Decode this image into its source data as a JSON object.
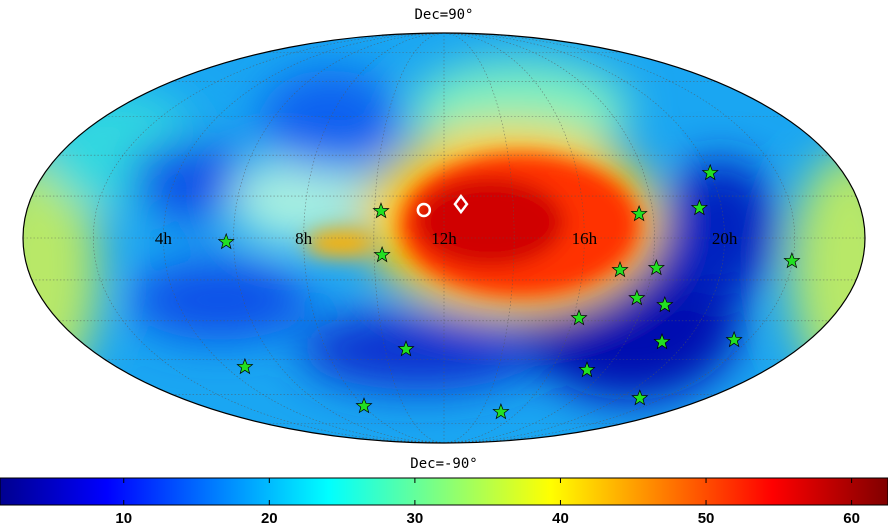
{
  "chart_data": {
    "type": "mollweide",
    "north_label": "Dec=90°",
    "south_label": "Dec=-90°",
    "ra_ticks": [
      {
        "value": 4,
        "label": "4h"
      },
      {
        "value": 8,
        "label": "8h"
      },
      {
        "value": 12,
        "label": "12h"
      },
      {
        "value": 16,
        "label": "16h"
      },
      {
        "value": 20,
        "label": "20h"
      }
    ],
    "colorbar": {
      "colormap": "jet",
      "lim": [
        1.5,
        62.5
      ],
      "ticks": [
        10,
        20,
        30,
        40,
        50,
        60
      ]
    },
    "markers": [
      {
        "marker": "star",
        "color": "#22e022",
        "ra": [
          20.0,
          10.19,
          17.6,
          19.36,
          5.79,
          10.23,
          17.08,
          18.12,
          21.98,
          17.75,
          18.66,
          16.18,
          19.21,
          21.53,
          10.71,
          17.33,
          4.7,
          8.02,
          15.07,
          20.94
        ],
        "dec": [
          23.4,
          9.6,
          8.55,
          10.7,
          -1.4,
          -6.05,
          -11.4,
          -10.7,
          -8.2,
          -21.6,
          -24.1,
          -29.0,
          -38.1,
          -37.3,
          -40.9,
          -49.4,
          -48.1,
          -65.6,
          -68.6,
          -61.8
        ]
      },
      {
        "marker": "circle",
        "color": "#ffffff",
        "ra": [
          11.42
        ],
        "dec": [
          9.98
        ]
      },
      {
        "marker": "diamond",
        "color": "#ffffff",
        "ra": [
          12.49
        ],
        "dec": [
          12.1
        ]
      }
    ]
  }
}
